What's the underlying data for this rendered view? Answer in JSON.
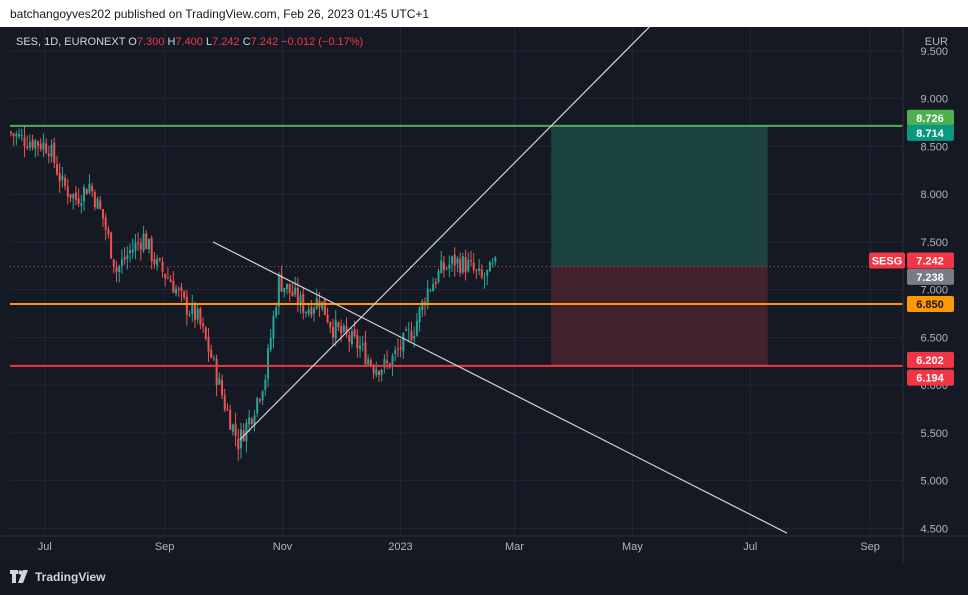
{
  "header": {
    "published": "batchangoyves202 published on TradingView.com, Feb 26, 2023 01:45 UTC+1"
  },
  "legend": {
    "symbol": "SES, 1D, EURONEXT",
    "o_label": "O",
    "open": "7.300",
    "h_label": "H",
    "high": "7.400",
    "l_label": "L",
    "low": "7.242",
    "c_label": "C",
    "close": "7.242",
    "change": "−0.012 (−0.17%)"
  },
  "footer": {
    "brand": "TradingView"
  },
  "colors": {
    "up": "#26a69a",
    "down": "#ef5350",
    "grid": "#232734",
    "axis_text": "#b2b5be",
    "green_level": "#4caf50",
    "orange_level": "#ff9800",
    "red_level": "#f23645",
    "target_zone": "#1e4b46",
    "stop_zone": "#4a2430",
    "trend_line": "#d1d4dc"
  },
  "chart_data": {
    "type": "candlestick",
    "symbol": "SES",
    "exchange": "EURONEXT",
    "interval": "1D",
    "currency": "EUR",
    "y_ticks": [
      "4.500",
      "5.000",
      "5.500",
      "6.000",
      "6.500",
      "7.000",
      "7.500",
      "8.000",
      "8.500",
      "9.000",
      "9.500"
    ],
    "x_ticks": [
      "Jul",
      "Sep",
      "Nov",
      "2023",
      "Mar",
      "May",
      "Jul",
      "Sep"
    ],
    "x_tick_dates": [
      "2022-07-01",
      "2022-09-01",
      "2022-11-01",
      "2023-01-01",
      "2023-03-01",
      "2023-05-01",
      "2023-07-01",
      "2023-09-01"
    ],
    "ylim": [
      4.42,
      9.75
    ],
    "xlim": [
      "2022-06-13",
      "2023-09-18"
    ],
    "series": [
      {
        "date": "2022-06-13",
        "close": 8.65
      },
      {
        "date": "2022-06-20",
        "close": 8.58
      },
      {
        "date": "2022-06-27",
        "close": 8.55
      },
      {
        "date": "2022-07-04",
        "close": 8.5
      },
      {
        "date": "2022-07-11",
        "close": 8.1
      },
      {
        "date": "2022-07-18",
        "close": 7.95
      },
      {
        "date": "2022-07-25",
        "close": 8.1
      },
      {
        "date": "2022-08-01",
        "close": 7.75
      },
      {
        "date": "2022-08-08",
        "close": 7.2
      },
      {
        "date": "2022-08-15",
        "close": 7.4
      },
      {
        "date": "2022-08-22",
        "close": 7.55
      },
      {
        "date": "2022-08-29",
        "close": 7.25
      },
      {
        "date": "2022-09-05",
        "close": 7.1
      },
      {
        "date": "2022-09-12",
        "close": 6.85
      },
      {
        "date": "2022-09-19",
        "close": 6.7
      },
      {
        "date": "2022-09-26",
        "close": 6.3
      },
      {
        "date": "2022-10-03",
        "close": 5.8
      },
      {
        "date": "2022-10-10",
        "close": 5.4
      },
      {
        "date": "2022-10-17",
        "close": 5.7
      },
      {
        "date": "2022-10-24",
        "close": 6.1
      },
      {
        "date": "2022-10-31",
        "close": 7.1
      },
      {
        "date": "2022-11-07",
        "close": 6.95
      },
      {
        "date": "2022-11-14",
        "close": 6.8
      },
      {
        "date": "2022-11-21",
        "close": 6.9
      },
      {
        "date": "2022-11-28",
        "close": 6.6
      },
      {
        "date": "2022-12-05",
        "close": 6.5
      },
      {
        "date": "2022-12-12",
        "close": 6.4
      },
      {
        "date": "2022-12-19",
        "close": 6.2
      },
      {
        "date": "2022-12-26",
        "close": 6.2
      },
      {
        "date": "2023-01-02",
        "close": 6.4
      },
      {
        "date": "2023-01-09",
        "close": 6.6
      },
      {
        "date": "2023-01-16",
        "close": 7.0
      },
      {
        "date": "2023-01-23",
        "close": 7.2
      },
      {
        "date": "2023-01-30",
        "close": 7.3
      },
      {
        "date": "2023-02-06",
        "close": 7.25
      },
      {
        "date": "2023-02-13",
        "close": 7.1
      },
      {
        "date": "2023-02-20",
        "close": 7.24
      }
    ],
    "levels": [
      {
        "price": 8.714,
        "label": "8.714",
        "color": "green"
      },
      {
        "price": 6.85,
        "label": "6.850",
        "color": "orange"
      },
      {
        "price": 6.202,
        "label": "6.202",
        "color": "red"
      }
    ],
    "price_labels": [
      {
        "price": 8.726,
        "label": "8.726",
        "color": "green"
      },
      {
        "price": 8.714,
        "label": "8.714",
        "color": "teal"
      },
      {
        "price": 7.242,
        "label": "7.242",
        "tag": "SESG",
        "color": "red"
      },
      {
        "price": 7.238,
        "label": "7.238",
        "color": "gray"
      },
      {
        "price": 6.85,
        "label": "6.850",
        "color": "orange"
      },
      {
        "price": 6.202,
        "label": "6.202",
        "color": "red"
      },
      {
        "price": 6.194,
        "label": "6.194",
        "color": "red"
      }
    ],
    "position": {
      "entry": 7.242,
      "target": 8.714,
      "stop": 6.202,
      "start": "2023-03-20",
      "end": "2023-07-10"
    },
    "trend_lines": [
      {
        "from": {
          "date": "2022-10-10",
          "price": 5.43
        },
        "to": {
          "date": "2023-05-22",
          "price": 10.0
        }
      },
      {
        "from": {
          "date": "2022-09-26",
          "price": 7.5
        },
        "to": {
          "date": "2023-07-20",
          "price": 4.45
        }
      }
    ]
  }
}
